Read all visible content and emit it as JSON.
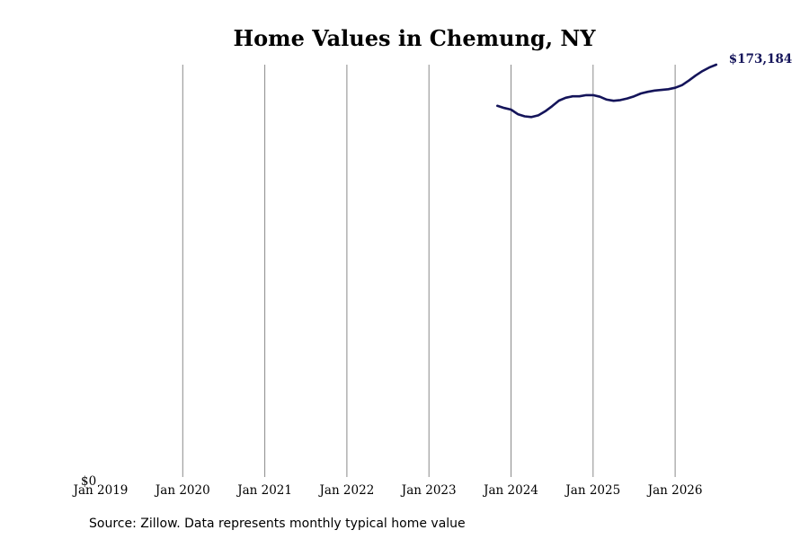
{
  "chart_data": {
    "type": "line",
    "title": "Home Values in Chemung, NY",
    "source": "Source: Zillow. Data represents monthly typical home value",
    "xlabel": "",
    "ylabel": "",
    "x_ticks": [
      "Jan 2019",
      "Jan 2020",
      "Jan 2021",
      "Jan 2022",
      "Jan 2023",
      "Jan 2024",
      "Jan 2025",
      "Jan 2026"
    ],
    "y_tick_label": "$0",
    "ylim": [
      0,
      173184
    ],
    "grid": "vertical lines at each January",
    "line_color": "#14145a",
    "end_label": "$173,184",
    "series": [
      {
        "x": [
          "2023-11",
          "2023-12",
          "2024-01",
          "2024-02",
          "2024-03",
          "2024-04",
          "2024-05",
          "2024-06",
          "2024-07",
          "2024-08",
          "2024-09",
          "2024-10",
          "2024-11",
          "2024-12",
          "2025-01",
          "2025-02",
          "2025-03",
          "2025-04",
          "2025-05",
          "2025-06",
          "2025-07",
          "2025-08",
          "2025-09",
          "2025-10",
          "2025-11",
          "2025-12",
          "2026-01",
          "2026-02",
          "2026-03",
          "2026-04",
          "2026-05",
          "2026-06",
          "2026-07"
        ],
        "values": [
          155900,
          155000,
          154300,
          152400,
          151500,
          151200,
          151900,
          153600,
          155700,
          158100,
          159300,
          159900,
          159900,
          160400,
          160400,
          159700,
          158500,
          158000,
          158300,
          159000,
          159900,
          161100,
          161800,
          162300,
          162600,
          162900,
          163500,
          164600,
          166500,
          168600,
          170500,
          172000,
          173184
        ]
      }
    ]
  }
}
